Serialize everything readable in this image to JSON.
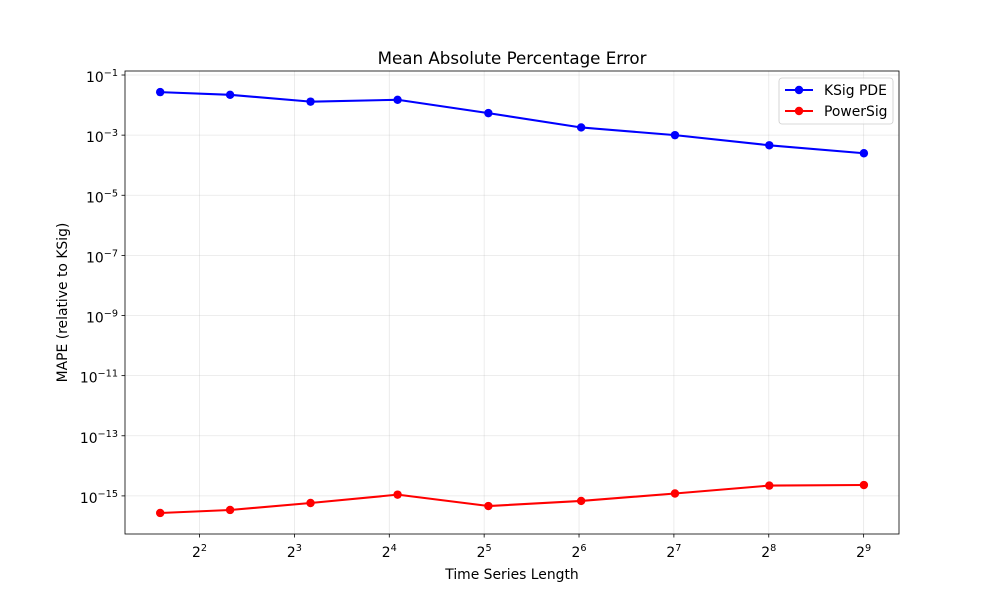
{
  "chart_data": {
    "type": "line",
    "title": "Mean Absolute Percentage Error",
    "xlabel": "Time Series Length",
    "ylabel": "MAPE (relative to KSig)",
    "xscale": "log2",
    "yscale": "log10",
    "xlim": [
      2.32,
      663
    ],
    "ylim": [
      5.4e-17,
      0.136
    ],
    "grid": true,
    "legend": "top-right",
    "x": [
      3,
      5,
      9,
      17,
      33,
      65,
      129,
      257,
      513
    ],
    "series": [
      {
        "name": "KSig PDE",
        "color": "#0000ff",
        "values": [
          0.027,
          0.022,
          0.013,
          0.015,
          0.0054,
          0.0018,
          0.001,
          0.00046,
          0.00025
        ]
      },
      {
        "name": "PowerSig",
        "color": "#ff0000",
        "values": [
          2.7e-16,
          3.4e-16,
          5.8e-16,
          1.1e-15,
          4.6e-16,
          6.8e-16,
          1.2e-15,
          2.2e-15,
          2.3e-15
        ]
      }
    ],
    "xticks": [
      {
        "value": 4,
        "base": "2",
        "exp": "2"
      },
      {
        "value": 8,
        "base": "2",
        "exp": "3"
      },
      {
        "value": 16,
        "base": "2",
        "exp": "4"
      },
      {
        "value": 32,
        "base": "2",
        "exp": "5"
      },
      {
        "value": 64,
        "base": "2",
        "exp": "6"
      },
      {
        "value": 128,
        "base": "2",
        "exp": "7"
      },
      {
        "value": 256,
        "base": "2",
        "exp": "8"
      },
      {
        "value": 512,
        "base": "2",
        "exp": "9"
      }
    ],
    "yticks": [
      {
        "value": 0.1,
        "base": "10",
        "exp": "−1"
      },
      {
        "value": 0.001,
        "base": "10",
        "exp": "−3"
      },
      {
        "value": 1e-05,
        "base": "10",
        "exp": "−5"
      },
      {
        "value": 1e-07,
        "base": "10",
        "exp": "−7"
      },
      {
        "value": 1e-09,
        "base": "10",
        "exp": "−9"
      },
      {
        "value": 1e-11,
        "base": "10",
        "exp": "−11"
      },
      {
        "value": 1e-13,
        "base": "10",
        "exp": "−13"
      },
      {
        "value": 1e-15,
        "base": "10",
        "exp": "−15"
      }
    ]
  }
}
